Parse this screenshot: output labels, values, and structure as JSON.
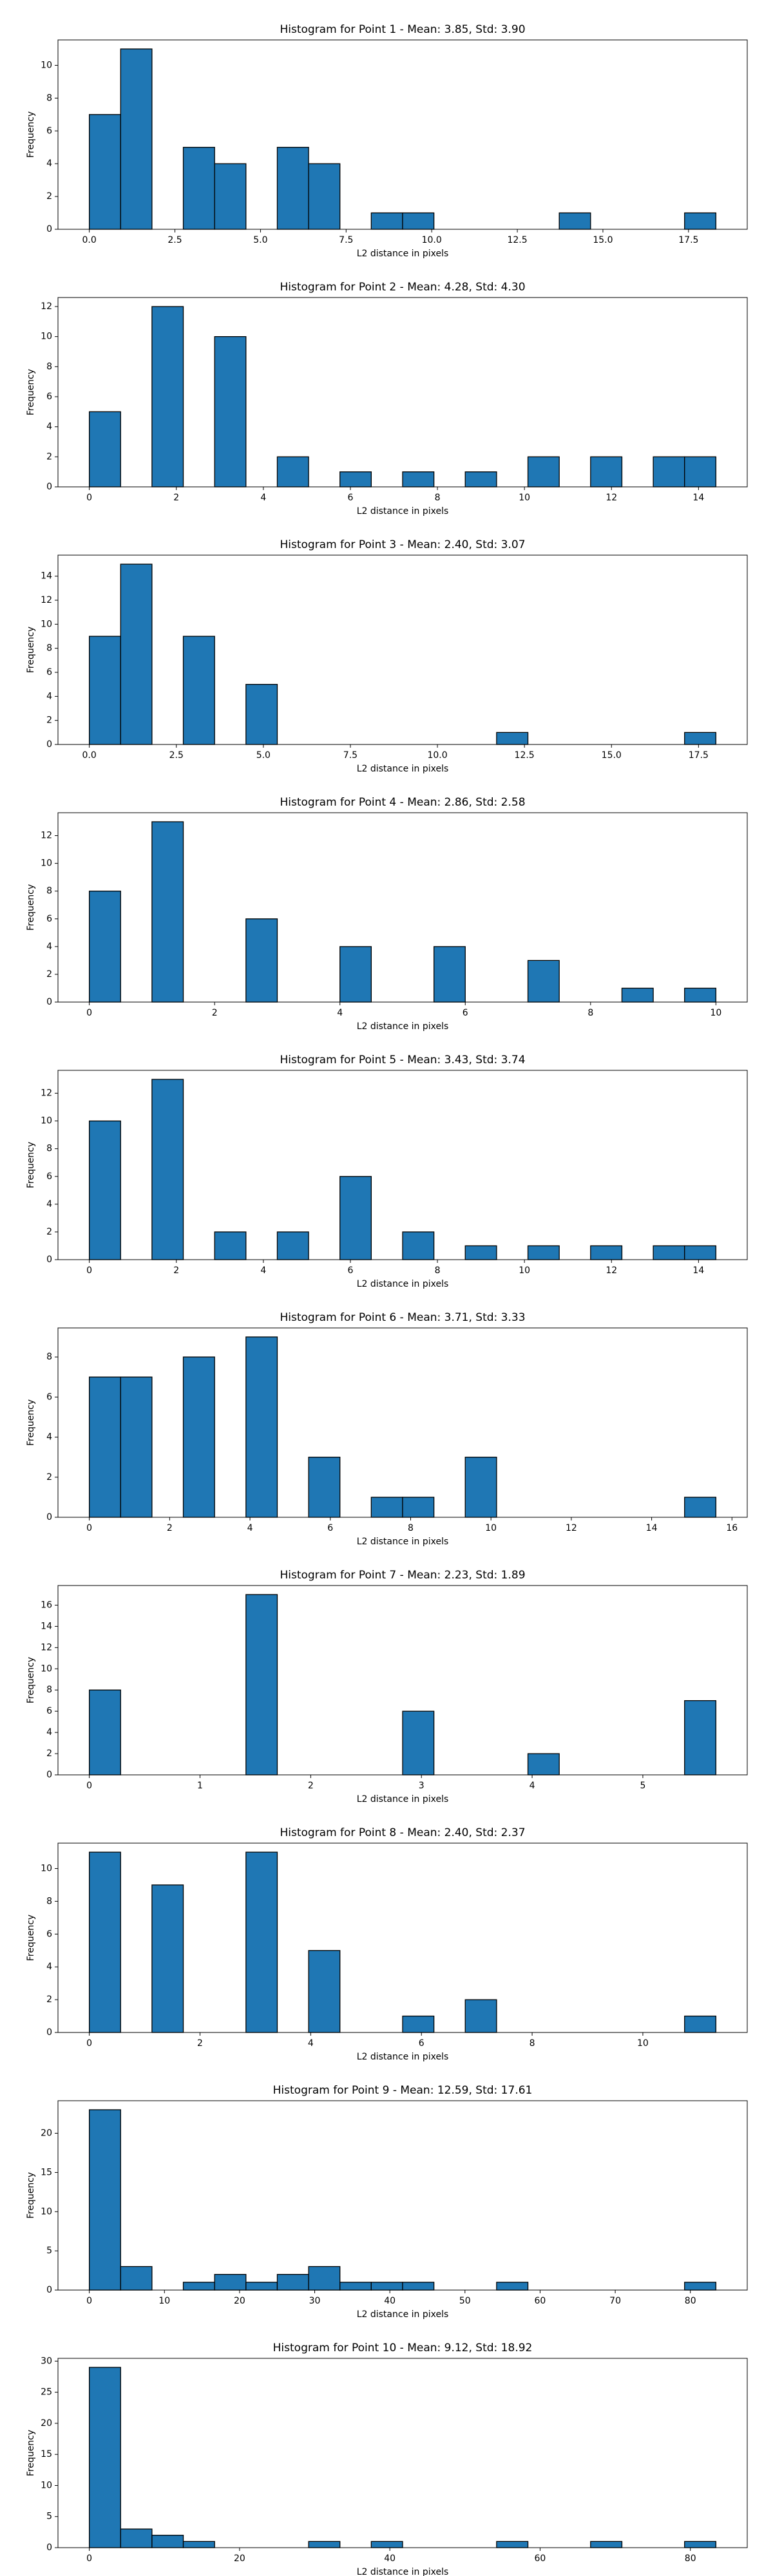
{
  "chart_data": [
    {
      "type": "histogram",
      "title": "Histogram for Point 1 - Mean: 3.85, Std: 3.90",
      "xlabel": "L2 distance in pixels",
      "ylabel": "Frequency",
      "color": "#1f77b4",
      "bins": [
        0,
        0.915,
        1.83,
        2.745,
        3.66,
        4.575,
        5.49,
        6.405,
        7.32,
        8.235,
        9.15,
        10.065,
        10.98,
        11.895,
        12.81,
        13.725,
        14.64,
        15.555,
        16.47,
        17.385,
        18.3
      ],
      "counts": [
        7,
        11,
        0,
        5,
        4,
        0,
        5,
        4,
        0,
        1,
        1,
        0,
        0,
        0,
        0,
        1,
        0,
        0,
        0,
        1
      ],
      "xlim": [
        -0.915,
        19.215
      ],
      "ylim": [
        0,
        11.55
      ],
      "xticks": [
        {
          "value": 0,
          "label": "0.0"
        },
        {
          "value": 2.5,
          "label": "2.5"
        },
        {
          "value": 5,
          "label": "5.0"
        },
        {
          "value": 7.5,
          "label": "7.5"
        },
        {
          "value": 10,
          "label": "10.0"
        },
        {
          "value": 12.5,
          "label": "12.5"
        },
        {
          "value": 15,
          "label": "15.0"
        },
        {
          "value": 17.5,
          "label": "17.5"
        }
      ],
      "yticks": [
        0,
        2,
        4,
        6,
        8,
        10
      ]
    },
    {
      "type": "histogram",
      "title": "Histogram for Point 2 - Mean: 4.28, Std: 4.30",
      "xlabel": "L2 distance in pixels",
      "ylabel": "Frequency",
      "color": "#1f77b4",
      "bins": [
        0,
        0.72,
        1.44,
        2.16,
        2.88,
        3.6,
        4.32,
        5.04,
        5.76,
        6.48,
        7.2,
        7.92,
        8.64,
        9.36,
        10.08,
        10.8,
        11.52,
        12.24,
        12.96,
        13.68,
        14.4
      ],
      "counts": [
        5,
        0,
        12,
        0,
        10,
        0,
        2,
        0,
        1,
        0,
        1,
        0,
        1,
        0,
        2,
        0,
        2,
        0,
        2,
        2
      ],
      "xlim": [
        -0.72,
        15.12
      ],
      "ylim": [
        0,
        12.6
      ],
      "xticks": [
        0,
        2,
        4,
        6,
        8,
        10,
        12,
        14
      ],
      "yticks": [
        0,
        2,
        4,
        6,
        8,
        10,
        12
      ]
    },
    {
      "type": "histogram",
      "title": "Histogram for Point 3 - Mean: 2.40, Std: 3.07",
      "xlabel": "L2 distance in pixels",
      "ylabel": "Frequency",
      "color": "#1f77b4",
      "bins": [
        0,
        0.9,
        1.8,
        2.7,
        3.6,
        4.5,
        5.4,
        6.3,
        7.2,
        8.1,
        9,
        9.9,
        10.8,
        11.7,
        12.6,
        13.5,
        14.4,
        15.3,
        16.2,
        17.1,
        18
      ],
      "counts": [
        9,
        15,
        0,
        9,
        0,
        5,
        0,
        0,
        0,
        0,
        0,
        0,
        0,
        1,
        0,
        0,
        0,
        0,
        0,
        1
      ],
      "xlim": [
        -0.9,
        18.9
      ],
      "ylim": [
        0,
        15.75
      ],
      "xticks": [
        {
          "value": 0,
          "label": "0.0"
        },
        {
          "value": 2.5,
          "label": "2.5"
        },
        {
          "value": 5,
          "label": "5.0"
        },
        {
          "value": 7.5,
          "label": "7.5"
        },
        {
          "value": 10,
          "label": "10.0"
        },
        {
          "value": 12.5,
          "label": "12.5"
        },
        {
          "value": 15,
          "label": "15.0"
        },
        {
          "value": 17.5,
          "label": "17.5"
        }
      ],
      "yticks": [
        0,
        2,
        4,
        6,
        8,
        10,
        12,
        14
      ]
    },
    {
      "type": "histogram",
      "title": "Histogram for Point 4 - Mean: 2.86, Std: 2.58",
      "xlabel": "L2 distance in pixels",
      "ylabel": "Frequency",
      "color": "#1f77b4",
      "bins": [
        0,
        0.5,
        1,
        1.5,
        2,
        2.5,
        3,
        3.5,
        4,
        4.5,
        5,
        5.5,
        6,
        6.5,
        7,
        7.5,
        8,
        8.5,
        9,
        9.5,
        10
      ],
      "counts": [
        8,
        0,
        13,
        0,
        0,
        6,
        0,
        0,
        4,
        0,
        0,
        4,
        0,
        0,
        3,
        0,
        0,
        1,
        0,
        1
      ],
      "xlim": [
        -0.5,
        10.5
      ],
      "ylim": [
        0,
        13.65
      ],
      "xticks": [
        0,
        2,
        4,
        6,
        8,
        10
      ],
      "yticks": [
        0,
        2,
        4,
        6,
        8,
        10,
        12
      ]
    },
    {
      "type": "histogram",
      "title": "Histogram for Point 5 - Mean: 3.43, Std: 3.74",
      "xlabel": "L2 distance in pixels",
      "ylabel": "Frequency",
      "color": "#1f77b4",
      "bins": [
        0,
        0.72,
        1.44,
        2.16,
        2.88,
        3.6,
        4.32,
        5.04,
        5.76,
        6.48,
        7.2,
        7.92,
        8.64,
        9.36,
        10.08,
        10.8,
        11.52,
        12.24,
        12.96,
        13.68,
        14.4
      ],
      "counts": [
        10,
        0,
        13,
        0,
        2,
        0,
        2,
        0,
        6,
        0,
        2,
        0,
        1,
        0,
        1,
        0,
        1,
        0,
        1,
        1
      ],
      "xlim": [
        -0.72,
        15.12
      ],
      "ylim": [
        0,
        13.65
      ],
      "xticks": [
        0,
        2,
        4,
        6,
        8,
        10,
        12,
        14
      ],
      "yticks": [
        0,
        2,
        4,
        6,
        8,
        10,
        12
      ]
    },
    {
      "type": "histogram",
      "title": "Histogram for Point 6 - Mean: 3.71, Std: 3.33",
      "xlabel": "L2 distance in pixels",
      "ylabel": "Frequency",
      "color": "#1f77b4",
      "bins": [
        0,
        0.78,
        1.56,
        2.34,
        3.12,
        3.9,
        4.68,
        5.46,
        6.24,
        7.02,
        7.8,
        8.58,
        9.36,
        10.14,
        10.92,
        11.7,
        12.48,
        13.26,
        14.04,
        14.82,
        15.6
      ],
      "counts": [
        7,
        7,
        0,
        8,
        0,
        9,
        0,
        3,
        0,
        1,
        1,
        0,
        3,
        0,
        0,
        0,
        0,
        0,
        0,
        1
      ],
      "xlim": [
        -0.78,
        16.38
      ],
      "ylim": [
        0,
        9.45
      ],
      "xticks": [
        0,
        2,
        4,
        6,
        8,
        10,
        12,
        14,
        16
      ],
      "yticks": [
        0,
        2,
        4,
        6,
        8
      ]
    },
    {
      "type": "histogram",
      "title": "Histogram for Point 7 - Mean: 2.23, Std: 1.89",
      "xlabel": "L2 distance in pixels",
      "ylabel": "Frequency",
      "color": "#1f77b4",
      "bins": [
        0,
        0.283,
        0.566,
        0.849,
        1.132,
        1.415,
        1.698,
        1.981,
        2.264,
        2.547,
        2.83,
        3.113,
        3.396,
        3.679,
        3.962,
        4.245,
        4.528,
        4.811,
        5.094,
        5.377,
        5.66
      ],
      "counts": [
        8,
        0,
        0,
        0,
        0,
        17,
        0,
        0,
        0,
        0,
        6,
        0,
        0,
        0,
        2,
        0,
        0,
        0,
        0,
        7
      ],
      "xlim": [
        -0.283,
        5.943
      ],
      "ylim": [
        0,
        17.85
      ],
      "xticks": [
        0,
        1,
        2,
        3,
        4,
        5
      ],
      "yticks": [
        0,
        2,
        4,
        6,
        8,
        10,
        12,
        14,
        16
      ]
    },
    {
      "type": "histogram",
      "title": "Histogram for Point 8 - Mean: 2.40, Std: 2.37",
      "xlabel": "L2 distance in pixels",
      "ylabel": "Frequency",
      "color": "#1f77b4",
      "bins": [
        0,
        0.566,
        1.132,
        1.698,
        2.264,
        2.83,
        3.396,
        3.962,
        4.528,
        5.094,
        5.66,
        6.226,
        6.792,
        7.358,
        7.924,
        8.49,
        9.056,
        9.622,
        10.188,
        10.754,
        11.32
      ],
      "counts": [
        11,
        0,
        9,
        0,
        0,
        11,
        0,
        5,
        0,
        0,
        1,
        0,
        2,
        0,
        0,
        0,
        0,
        0,
        0,
        1
      ],
      "xlim": [
        -0.566,
        11.886
      ],
      "ylim": [
        0,
        11.55
      ],
      "xticks": [
        0,
        2,
        4,
        6,
        8,
        10
      ],
      "yticks": [
        0,
        2,
        4,
        6,
        8,
        10
      ]
    },
    {
      "type": "histogram",
      "title": "Histogram for Point 9 - Mean: 12.59, Std: 17.61",
      "xlabel": "L2 distance in pixels",
      "ylabel": "Frequency",
      "color": "#1f77b4",
      "bins": [
        0,
        4.17,
        8.34,
        12.51,
        16.68,
        20.85,
        25.02,
        29.19,
        33.36,
        37.53,
        41.7,
        45.87,
        50.04,
        54.21,
        58.38,
        62.55,
        66.72,
        70.89,
        75.06,
        79.23,
        83.4
      ],
      "counts": [
        23,
        3,
        0,
        1,
        2,
        1,
        2,
        3,
        1,
        1,
        1,
        0,
        0,
        1,
        0,
        0,
        0,
        0,
        0,
        1
      ],
      "xlim": [
        -4.17,
        87.57
      ],
      "ylim": [
        0,
        24.15
      ],
      "xticks": [
        0,
        10,
        20,
        30,
        40,
        50,
        60,
        70,
        80
      ],
      "yticks": [
        0,
        5,
        10,
        15,
        20
      ]
    },
    {
      "type": "histogram",
      "title": "Histogram for Point 10 - Mean: 9.12, Std: 18.92",
      "xlabel": "L2 distance in pixels",
      "ylabel": "Frequency",
      "color": "#1f77b4",
      "bins": [
        0,
        4.17,
        8.34,
        12.51,
        16.68,
        20.85,
        25.02,
        29.19,
        33.36,
        37.53,
        41.7,
        45.87,
        50.04,
        54.21,
        58.38,
        62.55,
        66.72,
        70.89,
        75.06,
        79.23,
        83.4
      ],
      "counts": [
        29,
        3,
        2,
        1,
        0,
        0,
        0,
        1,
        0,
        1,
        0,
        0,
        0,
        1,
        0,
        0,
        1,
        0,
        0,
        1
      ],
      "xlim": [
        -4.17,
        87.57
      ],
      "ylim": [
        0,
        30.45
      ],
      "xticks": [
        0,
        20,
        40,
        60,
        80
      ],
      "yticks": [
        0,
        5,
        10,
        15,
        20,
        25,
        30
      ]
    }
  ]
}
